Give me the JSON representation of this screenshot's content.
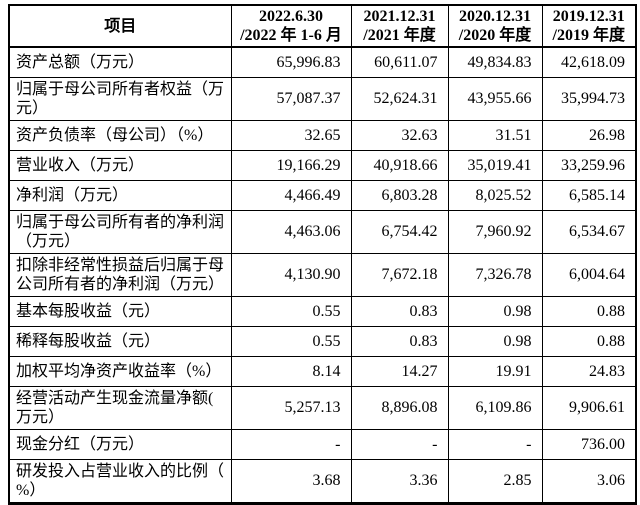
{
  "colors": {
    "background": "#ffffff",
    "border": "#000000",
    "text": "#000000"
  },
  "table": {
    "header": {
      "item_label": "项目",
      "periods": [
        "2022.6.30\n/2022 年 1-6 月",
        "2021.12.31\n/2021 年度",
        "2020.12.31\n/2020 年度",
        "2019.12.31\n/2019 年度"
      ]
    },
    "rows": [
      {
        "label": "资产总额（万元）",
        "values": [
          "65,996.83",
          "60,611.07",
          "49,834.83",
          "42,618.09"
        ]
      },
      {
        "label": "归属于母公司所有者权益（万元）",
        "values": [
          "57,087.37",
          "52,624.31",
          "43,955.66",
          "35,994.73"
        ]
      },
      {
        "label": "资产负债率（母公司）（%）",
        "values": [
          "32.65",
          "32.63",
          "31.51",
          "26.98"
        ]
      },
      {
        "label": "营业收入（万元）",
        "values": [
          "19,166.29",
          "40,918.66",
          "35,019.41",
          "33,259.96"
        ]
      },
      {
        "label": "净利润（万元）",
        "values": [
          "4,466.49",
          "6,803.28",
          "8,025.52",
          "6,585.14"
        ]
      },
      {
        "label": "归属于母公司所有者的净利润（万元）",
        "values": [
          "4,463.06",
          "6,754.42",
          "7,960.92",
          "6,534.67"
        ]
      },
      {
        "label": "扣除非经常性损益后归属于母公司所有者的净利润（万元）",
        "values": [
          "4,130.90",
          "7,672.18",
          "7,326.78",
          "6,004.64"
        ]
      },
      {
        "label": "基本每股收益（元）",
        "values": [
          "0.55",
          "0.83",
          "0.98",
          "0.88"
        ]
      },
      {
        "label": "稀释每股收益（元）",
        "values": [
          "0.55",
          "0.83",
          "0.98",
          "0.88"
        ]
      },
      {
        "label": "加权平均净资产收益率（%）",
        "values": [
          "8.14",
          "14.27",
          "19.91",
          "24.83"
        ]
      },
      {
        "label": "经营活动产生现金流量净额(万元）",
        "values": [
          "5,257.13",
          "8,896.08",
          "6,109.86",
          "9,906.61"
        ]
      },
      {
        "label": "现金分红（万元）",
        "values": [
          "-",
          "-",
          "-",
          "736.00"
        ]
      },
      {
        "label": "研发投入占营业收入的比例（%）",
        "values": [
          "3.68",
          "3.36",
          "2.85",
          "3.06"
        ]
      }
    ]
  }
}
